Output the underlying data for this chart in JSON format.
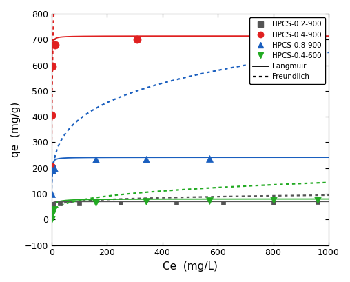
{
  "title": "",
  "xlabel": "Ce  (mg/L)",
  "ylabel": "qe  (mg/g)",
  "xlim": [
    0,
    1000
  ],
  "ylim": [
    -100,
    800
  ],
  "xticks": [
    0,
    200,
    400,
    600,
    800,
    1000
  ],
  "yticks": [
    -100,
    0,
    100,
    200,
    300,
    400,
    500,
    600,
    700,
    800
  ],
  "series": [
    {
      "label": "HPCS-0.2-900",
      "color": "#555555",
      "marker": "s",
      "marker_size": 5,
      "Ce_data": [
        0.8,
        2.5,
        7,
        30,
        100,
        250,
        450,
        620,
        800,
        960
      ],
      "qe_data": [
        50,
        57,
        60,
        62,
        63,
        64,
        64,
        65,
        66,
        67
      ],
      "langmuir_qmax": 70,
      "langmuir_KL": 2.5,
      "freundlich_KF": 40,
      "freundlich_n": 8.0
    },
    {
      "label": "HPCS-0.4-900",
      "color": "#e02020",
      "marker": "o",
      "marker_size": 8,
      "Ce_data": [
        0.15,
        0.6,
        2.5,
        12,
        310
      ],
      "qe_data": [
        205,
        405,
        595,
        680,
        700
      ],
      "langmuir_qmax": 714,
      "langmuir_KL": 5.0,
      "freundlich_KF": 400,
      "freundlich_n": 3.0
    },
    {
      "label": "HPCS-0.8-900",
      "color": "#1a5fbf",
      "marker": "^",
      "marker_size": 7,
      "Ce_data": [
        0.5,
        3.0,
        10,
        160,
        340,
        570
      ],
      "qe_data": [
        100,
        190,
        200,
        233,
        235,
        237
      ],
      "langmuir_qmax": 242,
      "langmuir_KL": 1.8,
      "freundlich_KF": 140,
      "freundlich_n": 4.5
    },
    {
      "label": "HPCS-0.4-600",
      "color": "#22aa22",
      "marker": "v",
      "marker_size": 7,
      "Ce_data": [
        0.5,
        2.0,
        8,
        160,
        340,
        570,
        800,
        960
      ],
      "qe_data": [
        0,
        22,
        38,
        65,
        70,
        74,
        75,
        77
      ],
      "langmuir_qmax": 80,
      "langmuir_KL": 0.25,
      "freundlich_KF": 20,
      "freundlich_n": 3.5
    }
  ],
  "legend_loc": "upper right",
  "fig_width": 5.08,
  "fig_height": 4.09,
  "dpi": 100
}
